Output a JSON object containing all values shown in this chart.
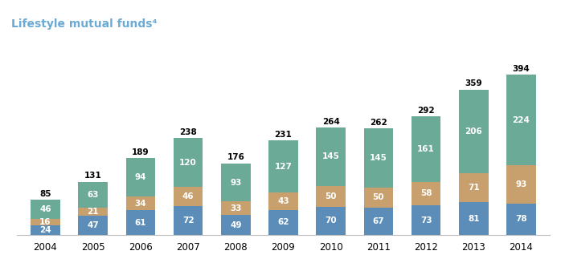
{
  "years": [
    "2004",
    "2005",
    "2006",
    "2007",
    "2008",
    "2009",
    "2010",
    "2011",
    "2012",
    "2013",
    "2014"
  ],
  "segment1": [
    24,
    47,
    61,
    72,
    49,
    62,
    70,
    67,
    73,
    81,
    78
  ],
  "segment2": [
    16,
    21,
    34,
    46,
    33,
    43,
    50,
    50,
    58,
    71,
    93
  ],
  "segment3": [
    46,
    63,
    94,
    120,
    93,
    127,
    145,
    145,
    161,
    206,
    224
  ],
  "totals": [
    85,
    131,
    189,
    238,
    176,
    231,
    264,
    262,
    292,
    359,
    394
  ],
  "color1": "#5b8db8",
  "color2": "#c8a06e",
  "color3": "#6aaa96",
  "title": "Lifestyle mutual funds⁴",
  "title_color": "#6aaad4",
  "title_fontsize": 10,
  "bar_width": 0.62,
  "label_fontsize": 7.5,
  "total_fontsize": 7.5,
  "figsize": [
    6.98,
    3.33
  ],
  "dpi": 100,
  "ylim": [
    0,
    460
  ],
  "background_color": "#ffffff"
}
